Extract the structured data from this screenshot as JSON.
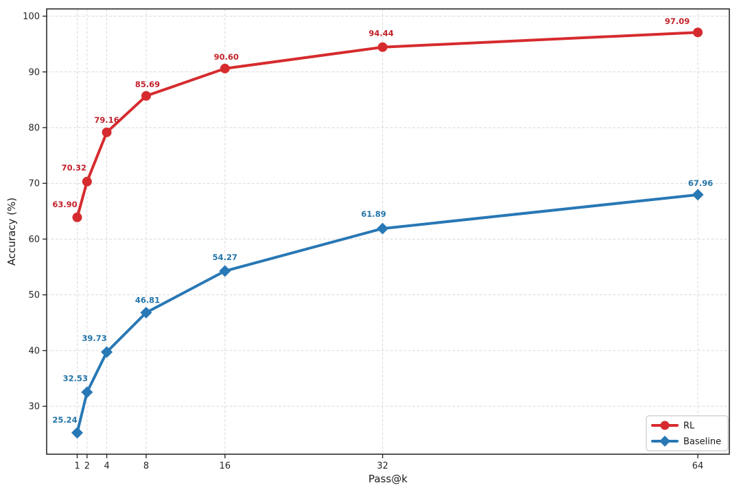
{
  "chart_data": {
    "type": "line",
    "title": "",
    "xlabel": "Pass@k",
    "ylabel": "Accuracy (%)",
    "x_scale": "linear",
    "grid": true,
    "grid_style": "dashed",
    "legend_position": "lower right",
    "xlim": [
      -2.1,
      67.2
    ],
    "ylim": [
      21.4,
      101.3
    ],
    "x_ticks": [
      1,
      2,
      4,
      8,
      16,
      32,
      64
    ],
    "y_ticks": [
      30,
      40,
      50,
      60,
      70,
      80,
      90,
      100
    ],
    "x": [
      1,
      2,
      4,
      8,
      16,
      32,
      64
    ],
    "series": [
      {
        "name": "RL",
        "marker": "circle",
        "color": "#d62b2e",
        "label_color": "#c2222b",
        "values": [
          63.9,
          70.32,
          79.16,
          85.69,
          90.6,
          94.44,
          97.09
        ],
        "labels": [
          "63.90",
          "70.32",
          "79.16",
          "85.69",
          "90.60",
          "94.44",
          "97.09"
        ]
      },
      {
        "name": "Baseline",
        "marker": "diamond",
        "color": "#2878b5",
        "label_color": "#2474a8",
        "values": [
          25.24,
          32.53,
          39.73,
          46.81,
          54.27,
          61.89,
          67.96
        ],
        "labels": [
          "25.24",
          "32.53",
          "39.73",
          "46.81",
          "54.27",
          "61.89",
          "67.96"
        ]
      }
    ],
    "colors": {
      "spine": "#2b2b2b",
      "grid": "#d9d9d9",
      "tick_label": "#262626",
      "axis_label": "#1a1a1a",
      "legend_border": "#c9c9c9",
      "background": "#ffffff"
    }
  }
}
